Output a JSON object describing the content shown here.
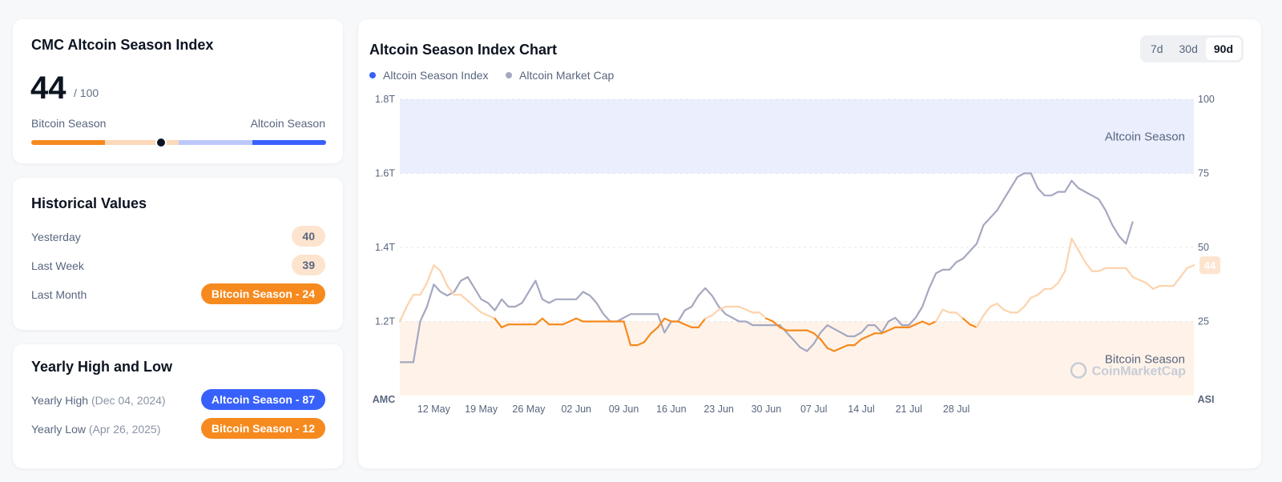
{
  "index_card": {
    "title": "CMC Altcoin Season Index",
    "value": 44,
    "value_text": "44",
    "max_text": "/ 100",
    "left_label": "Bitcoin Season",
    "right_label": "Altcoin Season"
  },
  "historical": {
    "title": "Historical Values",
    "rows": [
      {
        "label": "Yesterday",
        "value": "40",
        "style": "soft"
      },
      {
        "label": "Last Week",
        "value": "39",
        "style": "soft"
      },
      {
        "label": "Last Month",
        "value": "Bitcoin Season - 24",
        "style": "orange"
      }
    ]
  },
  "yearly": {
    "title": "Yearly High and Low",
    "high": {
      "label": "Yearly High",
      "date": "(Dec 04, 2024)",
      "value": "Altcoin Season - 87"
    },
    "low": {
      "label": "Yearly Low",
      "date": "(Apr 26, 2025)",
      "value": "Bitcoin Season - 12"
    }
  },
  "chart_panel": {
    "title": "Altcoin Season Index Chart",
    "tabs": [
      "7d",
      "30d",
      "90d"
    ],
    "active_tab": "90d",
    "watermark": "CoinMarketCap",
    "last_value_label": "44"
  },
  "colors": {
    "bitcoin_orange": "#f68a1e",
    "altcoin_blue": "#3861fb",
    "market_cap_gray": "#a5a8c0",
    "altcoin_zone": "#ebeefc",
    "bitcoin_zone": "#fff3e9"
  },
  "chart_data": {
    "type": "line",
    "title": "Altcoin Season Index Chart",
    "legend_position": "top-left",
    "grid": true,
    "left_axis": {
      "title": "AMC",
      "ticks": [
        "1.8T",
        "1.6T",
        "1.4T",
        "1.2T"
      ],
      "range_trillions": [
        1.0,
        1.8
      ]
    },
    "right_axis": {
      "title": "ASI",
      "ticks": [
        "100",
        "75",
        "50",
        "25"
      ],
      "range": [
        0,
        100
      ]
    },
    "x_ticks": [
      "12 May",
      "19 May",
      "26 May",
      "02 Jun",
      "09 Jun",
      "16 Jun",
      "23 Jun",
      "30 Jun",
      "07 Jul",
      "14 Jul",
      "21 Jul",
      "28 Jul"
    ],
    "x_start_offset_days": -5,
    "x_end_offset_days": 78,
    "zones": [
      {
        "label": "Altcoin Season",
        "from": 75,
        "to": 100
      },
      {
        "label": "Bitcoin Season",
        "from": 0,
        "to": 25
      }
    ],
    "series": [
      {
        "name": "Altcoin Season Index",
        "axis": "right",
        "points": [
          [
            -5,
            25
          ],
          [
            -4,
            30
          ],
          [
            -3,
            34
          ],
          [
            -2,
            34
          ],
          [
            -1,
            38
          ],
          [
            0,
            44
          ],
          [
            1,
            42
          ],
          [
            2,
            37
          ],
          [
            3,
            34
          ],
          [
            4,
            34
          ],
          [
            5,
            32
          ],
          [
            6,
            30
          ],
          [
            7,
            28
          ],
          [
            8,
            27
          ],
          [
            9,
            26
          ],
          [
            10,
            23
          ],
          [
            11,
            24
          ],
          [
            12,
            24
          ],
          [
            13,
            24
          ],
          [
            14,
            24
          ],
          [
            15,
            24
          ],
          [
            16,
            26
          ],
          [
            17,
            24
          ],
          [
            18,
            24
          ],
          [
            19,
            24
          ],
          [
            20,
            25
          ],
          [
            21,
            26
          ],
          [
            22,
            25
          ],
          [
            23,
            25
          ],
          [
            24,
            25
          ],
          [
            25,
            25
          ],
          [
            26,
            25
          ],
          [
            27,
            25
          ],
          [
            28,
            25
          ],
          [
            29,
            17
          ],
          [
            30,
            17
          ],
          [
            31,
            18
          ],
          [
            32,
            21
          ],
          [
            33,
            23
          ],
          [
            34,
            26
          ],
          [
            35,
            25
          ],
          [
            36,
            25
          ],
          [
            37,
            24
          ],
          [
            38,
            23
          ],
          [
            39,
            23
          ],
          [
            40,
            26
          ],
          [
            41,
            27
          ],
          [
            42,
            29
          ],
          [
            43,
            30
          ],
          [
            44,
            30
          ],
          [
            45,
            30
          ],
          [
            46,
            29
          ],
          [
            47,
            28
          ],
          [
            48,
            28
          ],
          [
            49,
            26
          ],
          [
            50,
            25
          ],
          [
            51,
            23
          ],
          [
            52,
            22
          ],
          [
            53,
            22
          ],
          [
            54,
            22
          ],
          [
            55,
            22
          ],
          [
            56,
            21
          ],
          [
            57,
            19
          ],
          [
            58,
            16
          ],
          [
            59,
            15
          ],
          [
            60,
            16
          ],
          [
            61,
            17
          ],
          [
            62,
            17
          ],
          [
            63,
            19
          ],
          [
            64,
            20
          ],
          [
            65,
            21
          ],
          [
            66,
            21
          ],
          [
            67,
            22
          ],
          [
            68,
            23
          ],
          [
            69,
            23
          ],
          [
            70,
            23
          ],
          [
            71,
            24
          ],
          [
            72,
            25
          ],
          [
            73,
            24
          ],
          [
            74,
            25
          ],
          [
            75,
            29
          ],
          [
            76,
            28
          ],
          [
            77,
            28
          ],
          [
            78,
            26
          ],
          [
            79,
            24
          ],
          [
            80,
            23
          ],
          [
            81,
            27
          ],
          [
            82,
            30
          ],
          [
            83,
            31
          ],
          [
            84,
            29
          ],
          [
            85,
            28
          ],
          [
            86,
            28
          ],
          [
            87,
            30
          ],
          [
            88,
            33
          ],
          [
            89,
            34
          ],
          [
            90,
            36
          ],
          [
            91,
            36
          ],
          [
            92,
            38
          ],
          [
            93,
            42
          ],
          [
            94,
            53
          ],
          [
            95,
            49
          ],
          [
            96,
            45
          ],
          [
            97,
            42
          ],
          [
            98,
            42
          ],
          [
            99,
            43
          ],
          [
            100,
            43
          ],
          [
            101,
            43
          ],
          [
            102,
            43
          ],
          [
            103,
            40
          ],
          [
            104,
            39
          ],
          [
            105,
            38
          ],
          [
            106,
            36
          ],
          [
            107,
            37
          ],
          [
            108,
            37
          ],
          [
            109,
            37
          ],
          [
            110,
            40
          ],
          [
            111,
            43
          ],
          [
            112,
            44
          ]
        ]
      },
      {
        "name": "Altcoin Market Cap",
        "axis": "left",
        "points": [
          [
            -5,
            1.09
          ],
          [
            -4,
            1.09
          ],
          [
            -3,
            1.09
          ],
          [
            -2,
            1.2
          ],
          [
            -1,
            1.24
          ],
          [
            0,
            1.3
          ],
          [
            1,
            1.28
          ],
          [
            2,
            1.27
          ],
          [
            3,
            1.28
          ],
          [
            4,
            1.31
          ],
          [
            5,
            1.32
          ],
          [
            6,
            1.29
          ],
          [
            7,
            1.26
          ],
          [
            8,
            1.25
          ],
          [
            9,
            1.23
          ],
          [
            10,
            1.26
          ],
          [
            11,
            1.24
          ],
          [
            12,
            1.24
          ],
          [
            13,
            1.25
          ],
          [
            14,
            1.28
          ],
          [
            15,
            1.31
          ],
          [
            16,
            1.26
          ],
          [
            17,
            1.25
          ],
          [
            18,
            1.26
          ],
          [
            19,
            1.26
          ],
          [
            20,
            1.26
          ],
          [
            21,
            1.26
          ],
          [
            22,
            1.28
          ],
          [
            23,
            1.27
          ],
          [
            24,
            1.25
          ],
          [
            25,
            1.22
          ],
          [
            26,
            1.2
          ],
          [
            27,
            1.2
          ],
          [
            28,
            1.21
          ],
          [
            29,
            1.22
          ],
          [
            30,
            1.22
          ],
          [
            31,
            1.22
          ],
          [
            32,
            1.22
          ],
          [
            33,
            1.22
          ],
          [
            34,
            1.17
          ],
          [
            35,
            1.2
          ],
          [
            36,
            1.2
          ],
          [
            37,
            1.23
          ],
          [
            38,
            1.24
          ],
          [
            39,
            1.27
          ],
          [
            40,
            1.29
          ],
          [
            41,
            1.27
          ],
          [
            42,
            1.24
          ],
          [
            43,
            1.22
          ],
          [
            44,
            1.21
          ],
          [
            45,
            1.2
          ],
          [
            46,
            1.2
          ],
          [
            47,
            1.19
          ],
          [
            48,
            1.19
          ],
          [
            49,
            1.19
          ],
          [
            50,
            1.19
          ],
          [
            51,
            1.19
          ],
          [
            52,
            1.17
          ],
          [
            53,
            1.15
          ],
          [
            54,
            1.13
          ],
          [
            55,
            1.12
          ],
          [
            56,
            1.14
          ],
          [
            57,
            1.17
          ],
          [
            58,
            1.19
          ],
          [
            59,
            1.18
          ],
          [
            60,
            1.17
          ],
          [
            61,
            1.16
          ],
          [
            62,
            1.16
          ],
          [
            63,
            1.17
          ],
          [
            64,
            1.19
          ],
          [
            65,
            1.19
          ],
          [
            66,
            1.17
          ],
          [
            67,
            1.2
          ],
          [
            68,
            1.21
          ],
          [
            69,
            1.19
          ],
          [
            70,
            1.19
          ],
          [
            71,
            1.21
          ],
          [
            72,
            1.24
          ],
          [
            73,
            1.29
          ],
          [
            74,
            1.33
          ],
          [
            75,
            1.34
          ],
          [
            76,
            1.34
          ],
          [
            77,
            1.36
          ],
          [
            78,
            1.37
          ],
          [
            79,
            1.39
          ],
          [
            80,
            1.41
          ],
          [
            81,
            1.46
          ],
          [
            82,
            1.48
          ],
          [
            83,
            1.5
          ],
          [
            84,
            1.53
          ],
          [
            85,
            1.56
          ],
          [
            86,
            1.59
          ],
          [
            87,
            1.6
          ],
          [
            88,
            1.6
          ],
          [
            89,
            1.56
          ],
          [
            90,
            1.54
          ],
          [
            91,
            1.54
          ],
          [
            92,
            1.55
          ],
          [
            93,
            1.55
          ],
          [
            94,
            1.58
          ],
          [
            95,
            1.56
          ],
          [
            96,
            1.55
          ],
          [
            97,
            1.54
          ],
          [
            98,
            1.53
          ],
          [
            99,
            1.5
          ],
          [
            100,
            1.46
          ],
          [
            101,
            1.43
          ],
          [
            102,
            1.41
          ],
          [
            103,
            1.47
          ]
        ]
      }
    ]
  }
}
